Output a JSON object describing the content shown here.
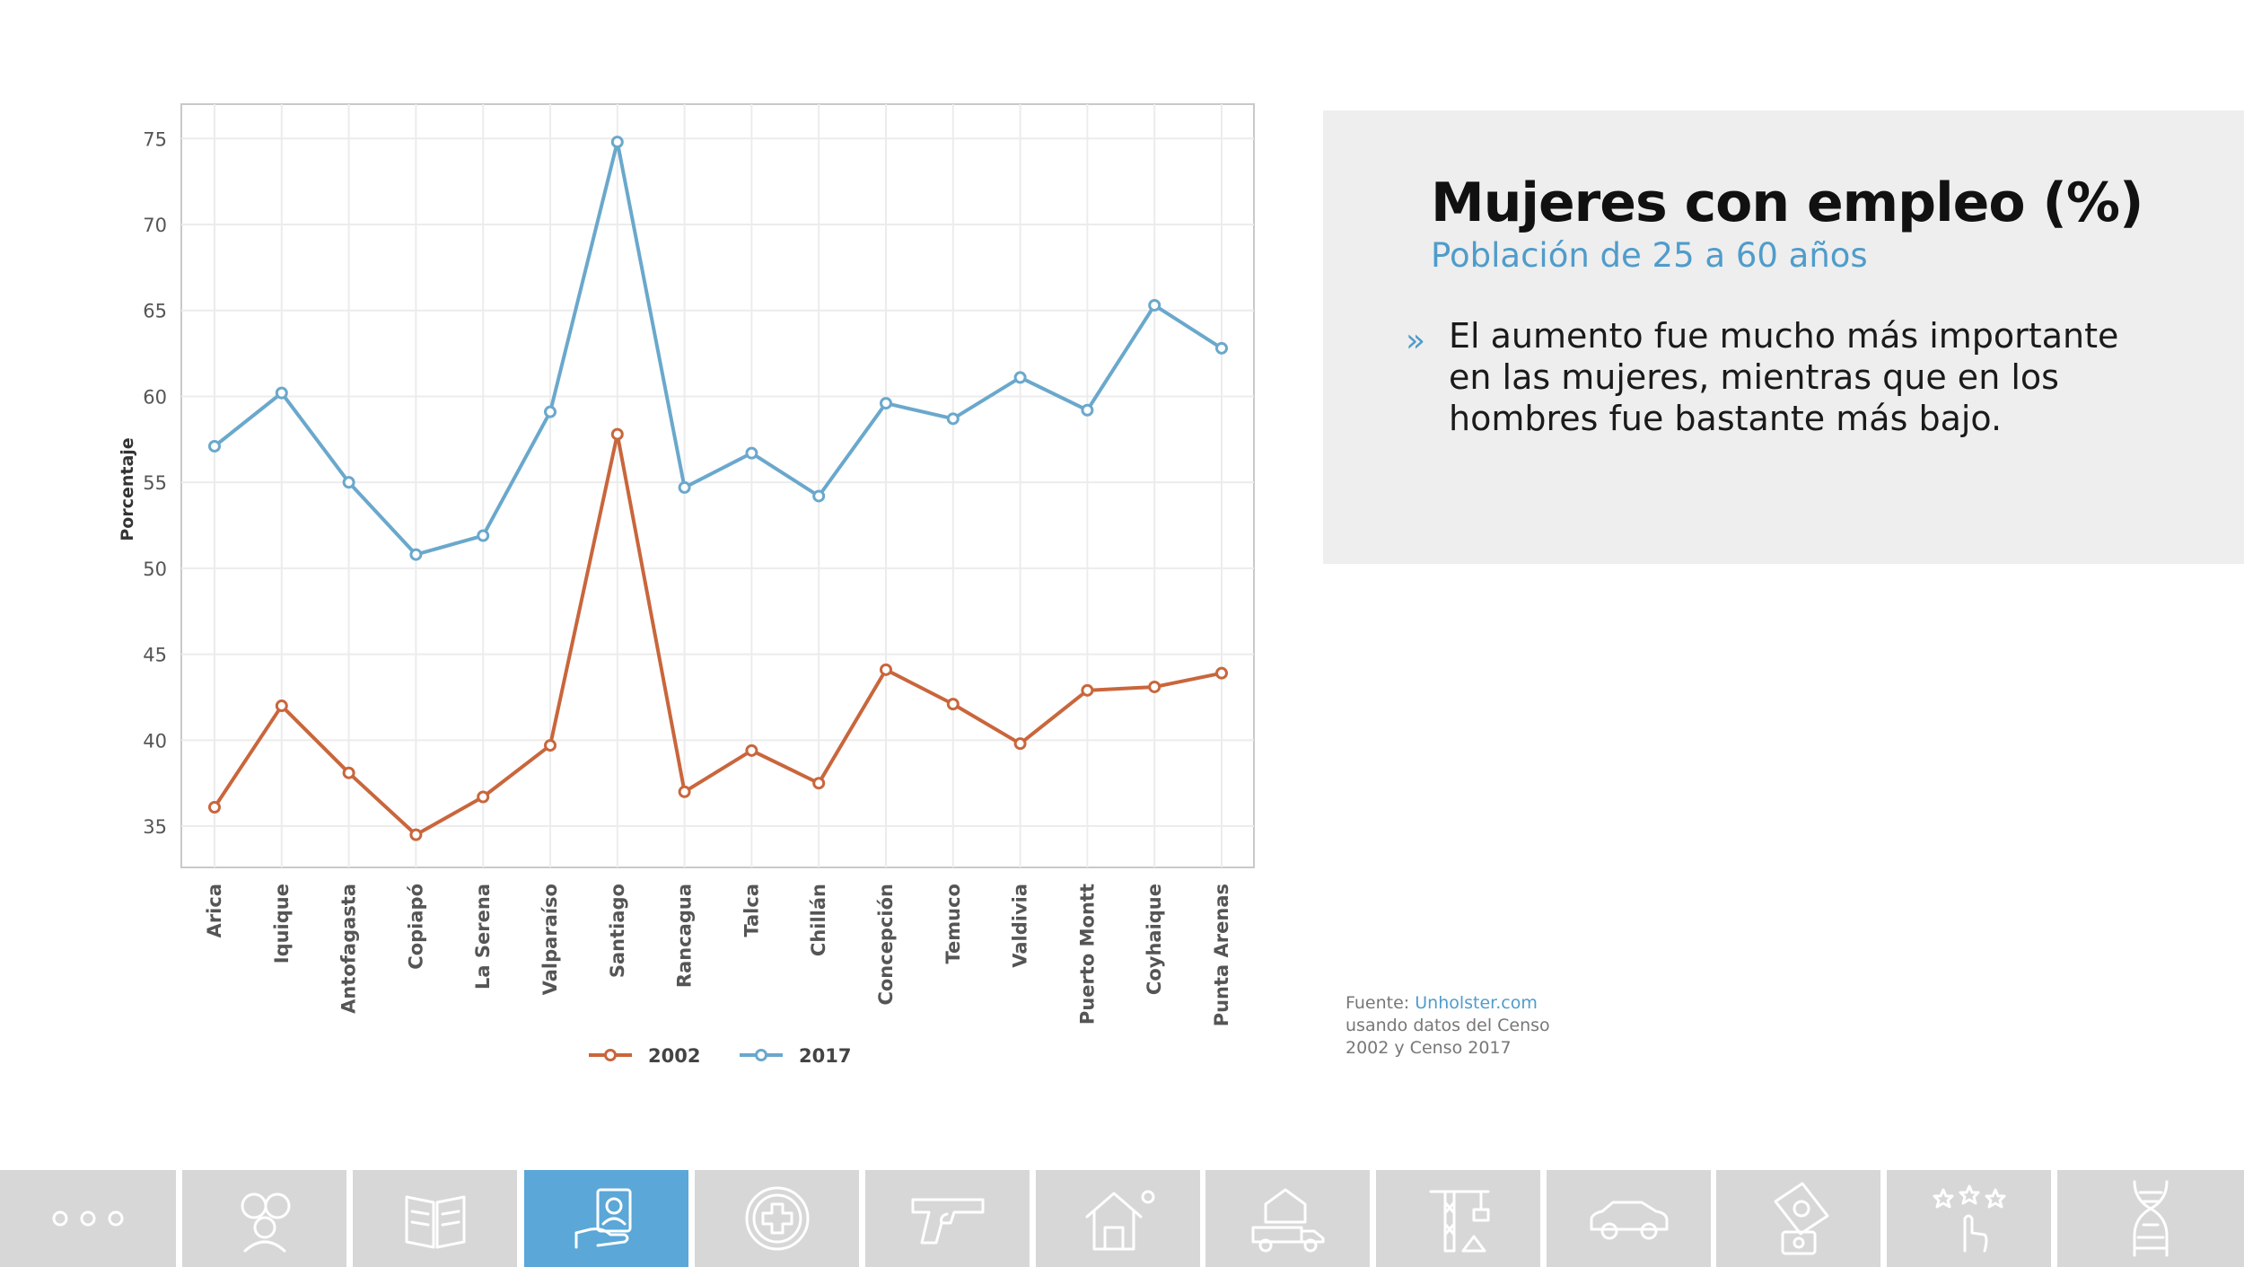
{
  "chart_data": {
    "type": "line",
    "categories": [
      "Arica",
      "Iquique",
      "Antofagasta",
      "Copiapó",
      "La Serena",
      "Valparaíso",
      "Santiago",
      "Rancagua",
      "Talca",
      "Chillán",
      "Concepción",
      "Temuco",
      "Valdivia",
      "Puerto Montt",
      "Coyhaique",
      "Punta Arenas"
    ],
    "series": [
      {
        "name": "2002",
        "color": "#c9663c",
        "values": [
          36.1,
          42.0,
          38.1,
          34.5,
          36.7,
          39.7,
          57.8,
          37.0,
          39.4,
          37.5,
          44.1,
          42.1,
          39.8,
          42.9,
          43.1,
          43.9
        ]
      },
      {
        "name": "2017",
        "color": "#6aa8cc",
        "values": [
          57.1,
          60.2,
          55.0,
          50.8,
          51.9,
          59.1,
          74.8,
          54.7,
          56.7,
          54.2,
          59.6,
          58.7,
          61.1,
          59.2,
          65.3,
          62.8
        ]
      }
    ],
    "ylabel": "Porcentaje",
    "xlabel": "",
    "yticks": [
      35,
      40,
      45,
      50,
      55,
      60,
      65,
      70,
      75
    ],
    "ylim": [
      32.6,
      77.0
    ],
    "grid": true,
    "legend_position": "bottom-center"
  },
  "panel": {
    "title": "Mujeres con empleo (%)",
    "subtitle": "Población de 25 a 60 años",
    "bullet_mark": "»",
    "bullet_text": "El aumento fue mucho más importante en las mujeres, mientras que en los hombres fue bastante más bajo."
  },
  "source": {
    "prefix": "Fuente: ",
    "link": "Unholster.com",
    "line2": "usando datos del Censo",
    "line3": "2002 y Censo 2017"
  },
  "nav": {
    "active_index": 3,
    "items": [
      {
        "icon": "more-dots-icon"
      },
      {
        "icon": "people-icon"
      },
      {
        "icon": "books-icon"
      },
      {
        "icon": "employment-icon"
      },
      {
        "icon": "health-cross-icon"
      },
      {
        "icon": "gun-icon"
      },
      {
        "icon": "housing-icon"
      },
      {
        "icon": "moving-house-icon"
      },
      {
        "icon": "construction-crane-icon"
      },
      {
        "icon": "car-icon"
      },
      {
        "icon": "cash-icon"
      },
      {
        "icon": "rating-stars-icon"
      },
      {
        "icon": "dna-icon"
      }
    ]
  }
}
